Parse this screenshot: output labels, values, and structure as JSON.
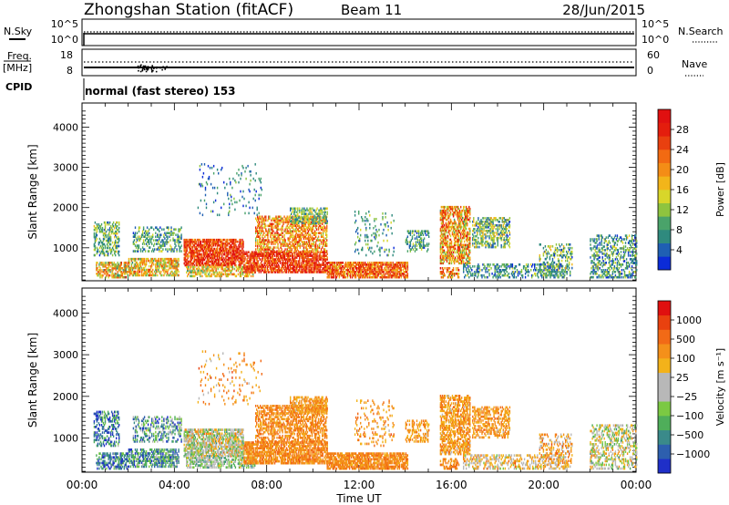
{
  "header": {
    "station": "Zhongshan Station (fitACF)",
    "beam": "Beam 11",
    "date": "28/Jun/2015"
  },
  "strip_panels": {
    "nsky_label": "N.Sky",
    "nsky_ticks": [
      "10^5",
      "10^0"
    ],
    "nsearch_label": "N.Search",
    "nsearch_ticks": [
      "10^5",
      "10^0"
    ],
    "freq_label_top": "Freq.",
    "freq_label_unit": "[MHz]",
    "freq_ticks": [
      "18",
      "8"
    ],
    "nave_label": "Nave",
    "nave_ticks": [
      "60",
      "0"
    ],
    "cpid_label": "CPID",
    "cpid_value": "normal (fast stereo) 153"
  },
  "x_axis": {
    "label": "Time UT",
    "ticks": [
      "00:00",
      "04:00",
      "08:00",
      "12:00",
      "16:00",
      "20:00",
      "00:00"
    ]
  },
  "chart_data": [
    {
      "type": "heatmap",
      "quantity": "Power",
      "ylabel": "Slant Range [km]",
      "xlabel": "Time UT",
      "ylim": [
        180,
        4600
      ],
      "yticks": [
        1000,
        2000,
        3000,
        4000
      ],
      "colorbar": {
        "label": "Power [dB]",
        "ticks": [
          "4",
          "8",
          "12",
          "16",
          "20",
          "24",
          "28"
        ],
        "colors": [
          "#0b2bd8",
          "#1f5fb3",
          "#2f8a7e",
          "#4aa36a",
          "#8ec43f",
          "#d8d62a",
          "#f2b51a",
          "#f48d16",
          "#f26a12",
          "#e9400f",
          "#e41d0d",
          "#e01010"
        ]
      },
      "bands": [
        {
          "t0": 0.6,
          "t1": 2.0,
          "r0": 250,
          "r1": 650,
          "p": 0.55,
          "lvl": [
            0.25,
            0.8
          ],
          "jit": 0.2
        },
        {
          "t0": 0.5,
          "t1": 1.6,
          "r0": 800,
          "r1": 1650,
          "p": 0.4,
          "lvl": [
            0.1,
            0.5
          ],
          "jit": 0.15
        },
        {
          "t0": 2.0,
          "t1": 4.2,
          "r0": 300,
          "r1": 750,
          "p": 0.6,
          "lvl": [
            0.3,
            0.75
          ],
          "jit": 0.2
        },
        {
          "t0": 2.2,
          "t1": 4.3,
          "r0": 900,
          "r1": 1500,
          "p": 0.35,
          "lvl": [
            0.1,
            0.45
          ],
          "jit": 0.2
        },
        {
          "t0": 4.4,
          "t1": 7.0,
          "r0": 550,
          "r1": 1200,
          "p": 0.7,
          "lvl": [
            0.6,
            1.0
          ],
          "jit": 0.1
        },
        {
          "t0": 4.5,
          "t1": 7.5,
          "r0": 280,
          "r1": 550,
          "p": 0.55,
          "lvl": [
            0.3,
            0.7
          ],
          "jit": 0.2
        },
        {
          "t0": 7.0,
          "t1": 10.6,
          "r0": 380,
          "r1": 900,
          "p": 0.7,
          "lvl": [
            0.6,
            1.0
          ],
          "jit": 0.1
        },
        {
          "t0": 7.5,
          "t1": 10.6,
          "r0": 900,
          "r1": 1800,
          "p": 0.5,
          "lvl": [
            0.4,
            0.85
          ],
          "jit": 0.2
        },
        {
          "t0": 9.0,
          "t1": 10.6,
          "r0": 1600,
          "r1": 2000,
          "p": 0.45,
          "lvl": [
            0.15,
            0.5
          ],
          "jit": 0.2
        },
        {
          "t0": 10.6,
          "t1": 14.1,
          "r0": 250,
          "r1": 650,
          "p": 0.75,
          "lvl": [
            0.5,
            0.95
          ],
          "jit": 0.15
        },
        {
          "t0": 11.8,
          "t1": 13.5,
          "r0": 800,
          "r1": 1900,
          "p": 0.12,
          "lvl": [
            0.1,
            0.4
          ],
          "jit": 0.2
        },
        {
          "t0": 15.5,
          "t1": 16.8,
          "r0": 600,
          "r1": 2000,
          "p": 0.6,
          "lvl": [
            0.3,
            0.9
          ],
          "jit": 0.2
        },
        {
          "t0": 15.5,
          "t1": 16.3,
          "r0": 250,
          "r1": 500,
          "p": 0.5,
          "lvl": [
            0.4,
            0.9
          ],
          "jit": 0.2
        },
        {
          "t0": 14.0,
          "t1": 15.0,
          "r0": 900,
          "r1": 1400,
          "p": 0.35,
          "lvl": [
            0.1,
            0.4
          ],
          "jit": 0.2
        },
        {
          "t0": 16.9,
          "t1": 18.5,
          "r0": 1000,
          "r1": 1750,
          "p": 0.45,
          "lvl": [
            0.1,
            0.55
          ],
          "jit": 0.2
        },
        {
          "t0": 16.5,
          "t1": 21.0,
          "r0": 250,
          "r1": 600,
          "p": 0.35,
          "lvl": [
            0.05,
            0.4
          ],
          "jit": 0.2
        },
        {
          "t0": 19.8,
          "t1": 21.2,
          "r0": 300,
          "r1": 1100,
          "p": 0.3,
          "lvl": [
            0.1,
            0.5
          ],
          "jit": 0.2
        },
        {
          "t0": 22.0,
          "t1": 24.0,
          "r0": 250,
          "r1": 1300,
          "p": 0.35,
          "lvl": [
            0.05,
            0.45
          ],
          "jit": 0.2
        },
        {
          "t0": 5.0,
          "t1": 7.8,
          "r0": 1800,
          "r1": 3100,
          "p": 0.06,
          "lvl": [
            0.05,
            0.3
          ],
          "jit": 0.2
        }
      ]
    },
    {
      "type": "heatmap",
      "quantity": "Velocity",
      "ylabel": "Slant Range [km]",
      "xlabel": "Time UT",
      "ylim": [
        180,
        4600
      ],
      "yticks": [
        1000,
        2000,
        3000,
        4000
      ],
      "colorbar": {
        "label": "Velocity [m s⁻¹]",
        "ticks": [
          "1000",
          "500",
          "100",
          "25",
          "−25",
          "−100",
          "−500",
          "−1000"
        ],
        "colors": [
          "#1f2fc8",
          "#2d5fae",
          "#3a8a8a",
          "#4fae5a",
          "#7bc943",
          "#b8b8b8",
          "#b8b8b8",
          "#f3b21a",
          "#f4901a",
          "#f26a16",
          "#e9410f",
          "#e0100f"
        ]
      },
      "bands": [
        {
          "t0": 0.6,
          "t1": 2.0,
          "r0": 250,
          "r1": 650,
          "p": 0.55,
          "lvl": [
            0.0,
            0.35
          ],
          "jit": 0.3
        },
        {
          "t0": 0.5,
          "t1": 1.6,
          "r0": 800,
          "r1": 1650,
          "p": 0.4,
          "lvl": [
            0.0,
            0.35
          ],
          "jit": 0.3
        },
        {
          "t0": 2.0,
          "t1": 4.2,
          "r0": 300,
          "r1": 750,
          "p": 0.6,
          "lvl": [
            0.05,
            0.45
          ],
          "jit": 0.3
        },
        {
          "t0": 2.2,
          "t1": 4.3,
          "r0": 900,
          "r1": 1500,
          "p": 0.35,
          "lvl": [
            0.05,
            0.5
          ],
          "jit": 0.3
        },
        {
          "t0": 4.4,
          "t1": 7.0,
          "r0": 550,
          "r1": 1200,
          "p": 0.7,
          "lvl": [
            0.3,
            0.7
          ],
          "jit": 0.3
        },
        {
          "t0": 4.5,
          "t1": 7.5,
          "r0": 280,
          "r1": 550,
          "p": 0.55,
          "lvl": [
            0.25,
            0.55
          ],
          "jit": 0.2
        },
        {
          "t0": 7.0,
          "t1": 10.6,
          "r0": 380,
          "r1": 900,
          "p": 0.7,
          "lvl": [
            0.65,
            0.8
          ],
          "jit": 0.1
        },
        {
          "t0": 7.5,
          "t1": 10.6,
          "r0": 900,
          "r1": 1800,
          "p": 0.5,
          "lvl": [
            0.65,
            0.8
          ],
          "jit": 0.1
        },
        {
          "t0": 9.0,
          "t1": 10.6,
          "r0": 1600,
          "r1": 2000,
          "p": 0.45,
          "lvl": [
            0.6,
            0.78
          ],
          "jit": 0.1
        },
        {
          "t0": 10.6,
          "t1": 14.1,
          "r0": 250,
          "r1": 650,
          "p": 0.75,
          "lvl": [
            0.65,
            0.8
          ],
          "jit": 0.08
        },
        {
          "t0": 11.8,
          "t1": 13.5,
          "r0": 800,
          "r1": 1900,
          "p": 0.12,
          "lvl": [
            0.6,
            0.8
          ],
          "jit": 0.1
        },
        {
          "t0": 15.5,
          "t1": 16.8,
          "r0": 600,
          "r1": 2000,
          "p": 0.6,
          "lvl": [
            0.6,
            0.78
          ],
          "jit": 0.1
        },
        {
          "t0": 15.5,
          "t1": 16.3,
          "r0": 250,
          "r1": 500,
          "p": 0.5,
          "lvl": [
            0.65,
            0.8
          ],
          "jit": 0.1
        },
        {
          "t0": 14.0,
          "t1": 15.0,
          "r0": 900,
          "r1": 1400,
          "p": 0.35,
          "lvl": [
            0.6,
            0.75
          ],
          "jit": 0.1
        },
        {
          "t0": 16.9,
          "t1": 18.5,
          "r0": 1000,
          "r1": 1750,
          "p": 0.45,
          "lvl": [
            0.6,
            0.78
          ],
          "jit": 0.1
        },
        {
          "t0": 16.5,
          "t1": 21.0,
          "r0": 250,
          "r1": 600,
          "p": 0.35,
          "lvl": [
            0.4,
            0.75
          ],
          "jit": 0.2
        },
        {
          "t0": 19.8,
          "t1": 21.2,
          "r0": 300,
          "r1": 1100,
          "p": 0.3,
          "lvl": [
            0.5,
            0.78
          ],
          "jit": 0.2
        },
        {
          "t0": 22.0,
          "t1": 24.0,
          "r0": 250,
          "r1": 1300,
          "p": 0.35,
          "lvl": [
            0.3,
            0.7
          ],
          "jit": 0.2
        },
        {
          "t0": 5.0,
          "t1": 7.8,
          "r0": 1800,
          "r1": 3100,
          "p": 0.06,
          "lvl": [
            0.6,
            0.8
          ],
          "jit": 0.2
        }
      ]
    }
  ]
}
